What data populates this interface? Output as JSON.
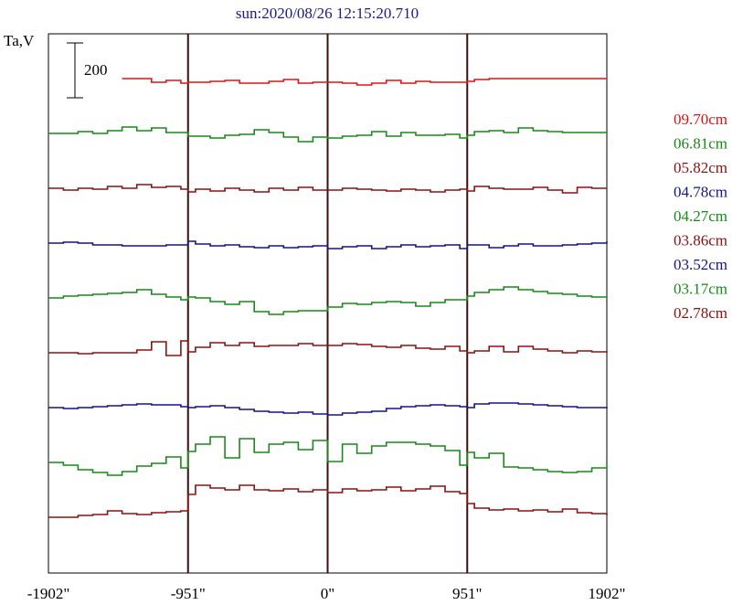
{
  "chart_data": {
    "type": "line",
    "title": "sun:2020/08/26 12:15:20.710",
    "ylabel": "Ta,V",
    "scale_bar_label": "200",
    "xlim": [
      -1902,
      1902
    ],
    "x_ticks": [
      -1902,
      -951,
      0,
      951,
      1902
    ],
    "x_tick_labels": [
      "-1902\"",
      "-951\"",
      "0\"",
      "951\"",
      "1902\""
    ],
    "vertical_markers": [
      -951,
      0,
      951
    ],
    "scale_bar_value": 200,
    "series": [
      {
        "name": "09.70cm",
        "color": "#e81010",
        "offset": 0,
        "x": [
          -1902,
          -1800,
          -1700,
          -1600,
          -1500,
          -1400,
          -1300,
          -1200,
          -1100,
          -1000,
          -951,
          -900,
          -800,
          -700,
          -600,
          -500,
          -400,
          -300,
          -200,
          -100,
          0,
          100,
          200,
          300,
          400,
          500,
          600,
          700,
          800,
          900,
          951,
          1000,
          1100,
          1200,
          1300,
          1400,
          1500,
          1600,
          1700,
          1800,
          1902
        ],
        "y": [
          null,
          null,
          null,
          null,
          null,
          0,
          0,
          -8,
          -4,
          -10,
          -8,
          -8,
          -6,
          -4,
          -10,
          -10,
          -6,
          -2,
          -10,
          -8,
          -8,
          -10,
          -14,
          -10,
          -4,
          -10,
          -6,
          -8,
          -8,
          -8,
          -6,
          -2,
          0,
          0,
          0,
          0,
          0,
          0,
          0,
          0,
          0
        ]
      },
      {
        "name": "06.81cm",
        "color": "#178a17",
        "offset": -120,
        "x": [
          -1902,
          -1800,
          -1700,
          -1600,
          -1500,
          -1400,
          -1300,
          -1200,
          -1100,
          -1000,
          -951,
          -900,
          -800,
          -700,
          -600,
          -500,
          -400,
          -300,
          -200,
          -100,
          0,
          100,
          200,
          300,
          400,
          500,
          600,
          700,
          800,
          900,
          951,
          1000,
          1100,
          1200,
          1300,
          1400,
          1500,
          1600,
          1700,
          1800,
          1902
        ],
        "y": [
          0,
          0,
          4,
          0,
          6,
          14,
          6,
          12,
          2,
          2,
          -6,
          -6,
          -10,
          -4,
          -2,
          8,
          2,
          -8,
          -18,
          -8,
          -10,
          -6,
          -4,
          4,
          -6,
          2,
          -4,
          -4,
          -2,
          -10,
          -4,
          4,
          6,
          2,
          12,
          6,
          4,
          2,
          2,
          2,
          0
        ]
      },
      {
        "name": "05.82cm",
        "color": "#8b1010",
        "offset": -240,
        "x": [
          -1902,
          -1800,
          -1700,
          -1600,
          -1500,
          -1400,
          -1300,
          -1200,
          -1100,
          -1000,
          -951,
          -900,
          -800,
          -700,
          -600,
          -500,
          -400,
          -300,
          -200,
          -100,
          0,
          100,
          200,
          300,
          400,
          500,
          600,
          700,
          800,
          900,
          951,
          1000,
          1100,
          1200,
          1300,
          1400,
          1500,
          1600,
          1700,
          1800,
          1902
        ],
        "y": [
          0,
          -4,
          0,
          -2,
          4,
          0,
          8,
          2,
          4,
          -2,
          -8,
          -2,
          -6,
          0,
          -4,
          -8,
          0,
          -4,
          2,
          -4,
          -4,
          0,
          -2,
          -4,
          -6,
          -2,
          -4,
          -8,
          -4,
          -2,
          -6,
          4,
          0,
          -2,
          -2,
          2,
          -4,
          -10,
          2,
          0,
          0
        ]
      },
      {
        "name": "04.78cm",
        "color": "#14148a",
        "offset": -360,
        "x": [
          -1902,
          -1800,
          -1700,
          -1600,
          -1500,
          -1400,
          -1300,
          -1200,
          -1100,
          -1000,
          -951,
          -900,
          -800,
          -700,
          -600,
          -500,
          -400,
          -300,
          -200,
          -100,
          0,
          100,
          200,
          300,
          400,
          500,
          600,
          700,
          800,
          900,
          951,
          1000,
          1100,
          1200,
          1300,
          1400,
          1500,
          1600,
          1700,
          1800,
          1902
        ],
        "y": [
          0,
          2,
          0,
          -4,
          -4,
          -6,
          -6,
          -6,
          -4,
          -4,
          4,
          -2,
          -6,
          -4,
          -8,
          -10,
          -6,
          -10,
          -8,
          -6,
          -12,
          -8,
          -6,
          -12,
          -8,
          -4,
          -8,
          -6,
          -4,
          -12,
          -4,
          -4,
          -10,
          -6,
          -2,
          -6,
          -6,
          -4,
          -2,
          0,
          4
        ]
      },
      {
        "name": "04.27cm",
        "color": "#178a17",
        "offset": -480,
        "x": [
          -1902,
          -1800,
          -1700,
          -1600,
          -1500,
          -1400,
          -1300,
          -1200,
          -1100,
          -1000,
          -951,
          -900,
          -800,
          -700,
          -600,
          -500,
          -400,
          -300,
          -200,
          -100,
          0,
          100,
          200,
          300,
          400,
          500,
          600,
          700,
          800,
          900,
          951,
          1000,
          1100,
          1200,
          1300,
          1400,
          1500,
          1600,
          1700,
          1800,
          1902
        ],
        "y": [
          0,
          4,
          6,
          8,
          10,
          12,
          18,
          8,
          2,
          -4,
          2,
          0,
          -8,
          -14,
          -8,
          -30,
          -36,
          -30,
          -28,
          -28,
          -20,
          -12,
          -14,
          -10,
          -8,
          -10,
          -18,
          -10,
          -4,
          -4,
          4,
          12,
          18,
          24,
          18,
          14,
          10,
          8,
          4,
          2,
          0
        ]
      },
      {
        "name": "03.86cm",
        "color": "#8b1010",
        "offset": -600,
        "x": [
          -1902,
          -1800,
          -1700,
          -1600,
          -1500,
          -1400,
          -1300,
          -1200,
          -1100,
          -1000,
          -951,
          -900,
          -800,
          -700,
          -600,
          -500,
          -400,
          -300,
          -200,
          -100,
          0,
          100,
          200,
          300,
          400,
          500,
          600,
          700,
          800,
          900,
          951,
          1000,
          1100,
          1200,
          1300,
          1400,
          1500,
          1600,
          1700,
          1800,
          1902
        ],
        "y": [
          0,
          0,
          -2,
          0,
          0,
          0,
          6,
          24,
          -6,
          26,
          2,
          12,
          22,
          16,
          22,
          14,
          16,
          16,
          20,
          16,
          16,
          20,
          18,
          14,
          12,
          16,
          10,
          8,
          14,
          4,
          0,
          4,
          14,
          2,
          14,
          8,
          4,
          0,
          4,
          2,
          0
        ]
      },
      {
        "name": "03.52cm",
        "color": "#14148a",
        "offset": -720,
        "x": [
          -1902,
          -1800,
          -1700,
          -1600,
          -1500,
          -1400,
          -1300,
          -1200,
          -1100,
          -1000,
          -951,
          -900,
          -800,
          -700,
          -600,
          -500,
          -400,
          -300,
          -200,
          -100,
          0,
          100,
          200,
          300,
          400,
          500,
          600,
          700,
          800,
          900,
          951,
          1000,
          1100,
          1200,
          1300,
          1400,
          1500,
          1600,
          1700,
          1800,
          1902
        ],
        "y": [
          0,
          -2,
          0,
          2,
          4,
          6,
          8,
          6,
          6,
          2,
          0,
          2,
          4,
          0,
          -4,
          -8,
          -10,
          -12,
          -10,
          -14,
          -16,
          -12,
          -10,
          -8,
          -2,
          2,
          4,
          6,
          4,
          2,
          0,
          8,
          10,
          10,
          8,
          6,
          4,
          2,
          0,
          0,
          -2
        ]
      },
      {
        "name": "03.17cm",
        "color": "#178a17",
        "offset": -840,
        "x": [
          -1902,
          -1800,
          -1700,
          -1600,
          -1500,
          -1400,
          -1300,
          -1200,
          -1100,
          -1000,
          -951,
          -900,
          -800,
          -700,
          -600,
          -500,
          -400,
          -300,
          -200,
          -100,
          0,
          100,
          200,
          300,
          400,
          500,
          600,
          700,
          800,
          900,
          951,
          1000,
          1100,
          1200,
          1300,
          1400,
          1500,
          1600,
          1700,
          1800,
          1902
        ],
        "y": [
          0,
          -6,
          -16,
          -22,
          -28,
          -20,
          -8,
          -2,
          12,
          -12,
          24,
          40,
          56,
          10,
          52,
          22,
          40,
          44,
          28,
          48,
          2,
          40,
          20,
          36,
          44,
          44,
          40,
          36,
          26,
          -6,
          22,
          10,
          20,
          -10,
          -12,
          -16,
          -20,
          -22,
          -20,
          -12,
          0
        ]
      },
      {
        "name": "02.78cm",
        "color": "#8b1010",
        "offset": -960,
        "x": [
          -1902,
          -1800,
          -1700,
          -1600,
          -1500,
          -1400,
          -1300,
          -1200,
          -1100,
          -1000,
          -951,
          -900,
          -800,
          -700,
          -600,
          -500,
          -400,
          -300,
          -200,
          -100,
          0,
          100,
          200,
          300,
          400,
          500,
          600,
          700,
          800,
          900,
          951,
          1000,
          1100,
          1200,
          1300,
          1400,
          1500,
          1600,
          1700,
          1800,
          1902
        ],
        "y": [
          0,
          0,
          4,
          6,
          14,
          8,
          6,
          10,
          12,
          14,
          50,
          70,
          64,
          60,
          70,
          60,
          58,
          62,
          56,
          60,
          54,
          62,
          58,
          60,
          66,
          58,
          62,
          68,
          56,
          52,
          30,
          20,
          16,
          18,
          14,
          16,
          12,
          18,
          10,
          8,
          4
        ]
      }
    ]
  }
}
